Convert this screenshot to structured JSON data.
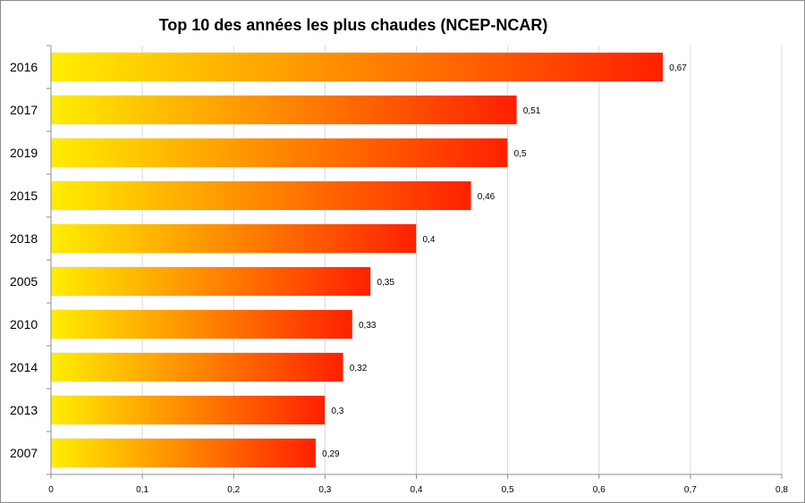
{
  "chart_data": {
    "type": "bar",
    "orientation": "horizontal",
    "title": "Top 10 des années les plus chaudes (NCEP-NCAR)",
    "categories": [
      "2016",
      "2017",
      "2019",
      "2015",
      "2018",
      "2005",
      "2010",
      "2014",
      "2013",
      "2007"
    ],
    "values": [
      0.67,
      0.51,
      0.5,
      0.46,
      0.4,
      0.35,
      0.33,
      0.32,
      0.3,
      0.29
    ],
    "value_labels": [
      "0,67",
      "0,51",
      "0,5",
      "0,46",
      "0,4",
      "0,35",
      "0,33",
      "0,32",
      "0,3",
      "0,29"
    ],
    "xlim": [
      0,
      0.8
    ],
    "x_ticks": [
      0,
      0.1,
      0.2,
      0.3,
      0.4,
      0.5,
      0.6,
      0.7,
      0.8
    ],
    "x_tick_labels": [
      "0",
      "0,1",
      "0,2",
      "0,3",
      "0,4",
      "0,5",
      "0,6",
      "0,7",
      "0,8"
    ],
    "grid": true,
    "legend": "none",
    "colors": {
      "gradient_start": "#ffee00",
      "gradient_end": "#ff2000",
      "grid": "#d9d9d9",
      "axis": "#8c8c8c"
    }
  }
}
